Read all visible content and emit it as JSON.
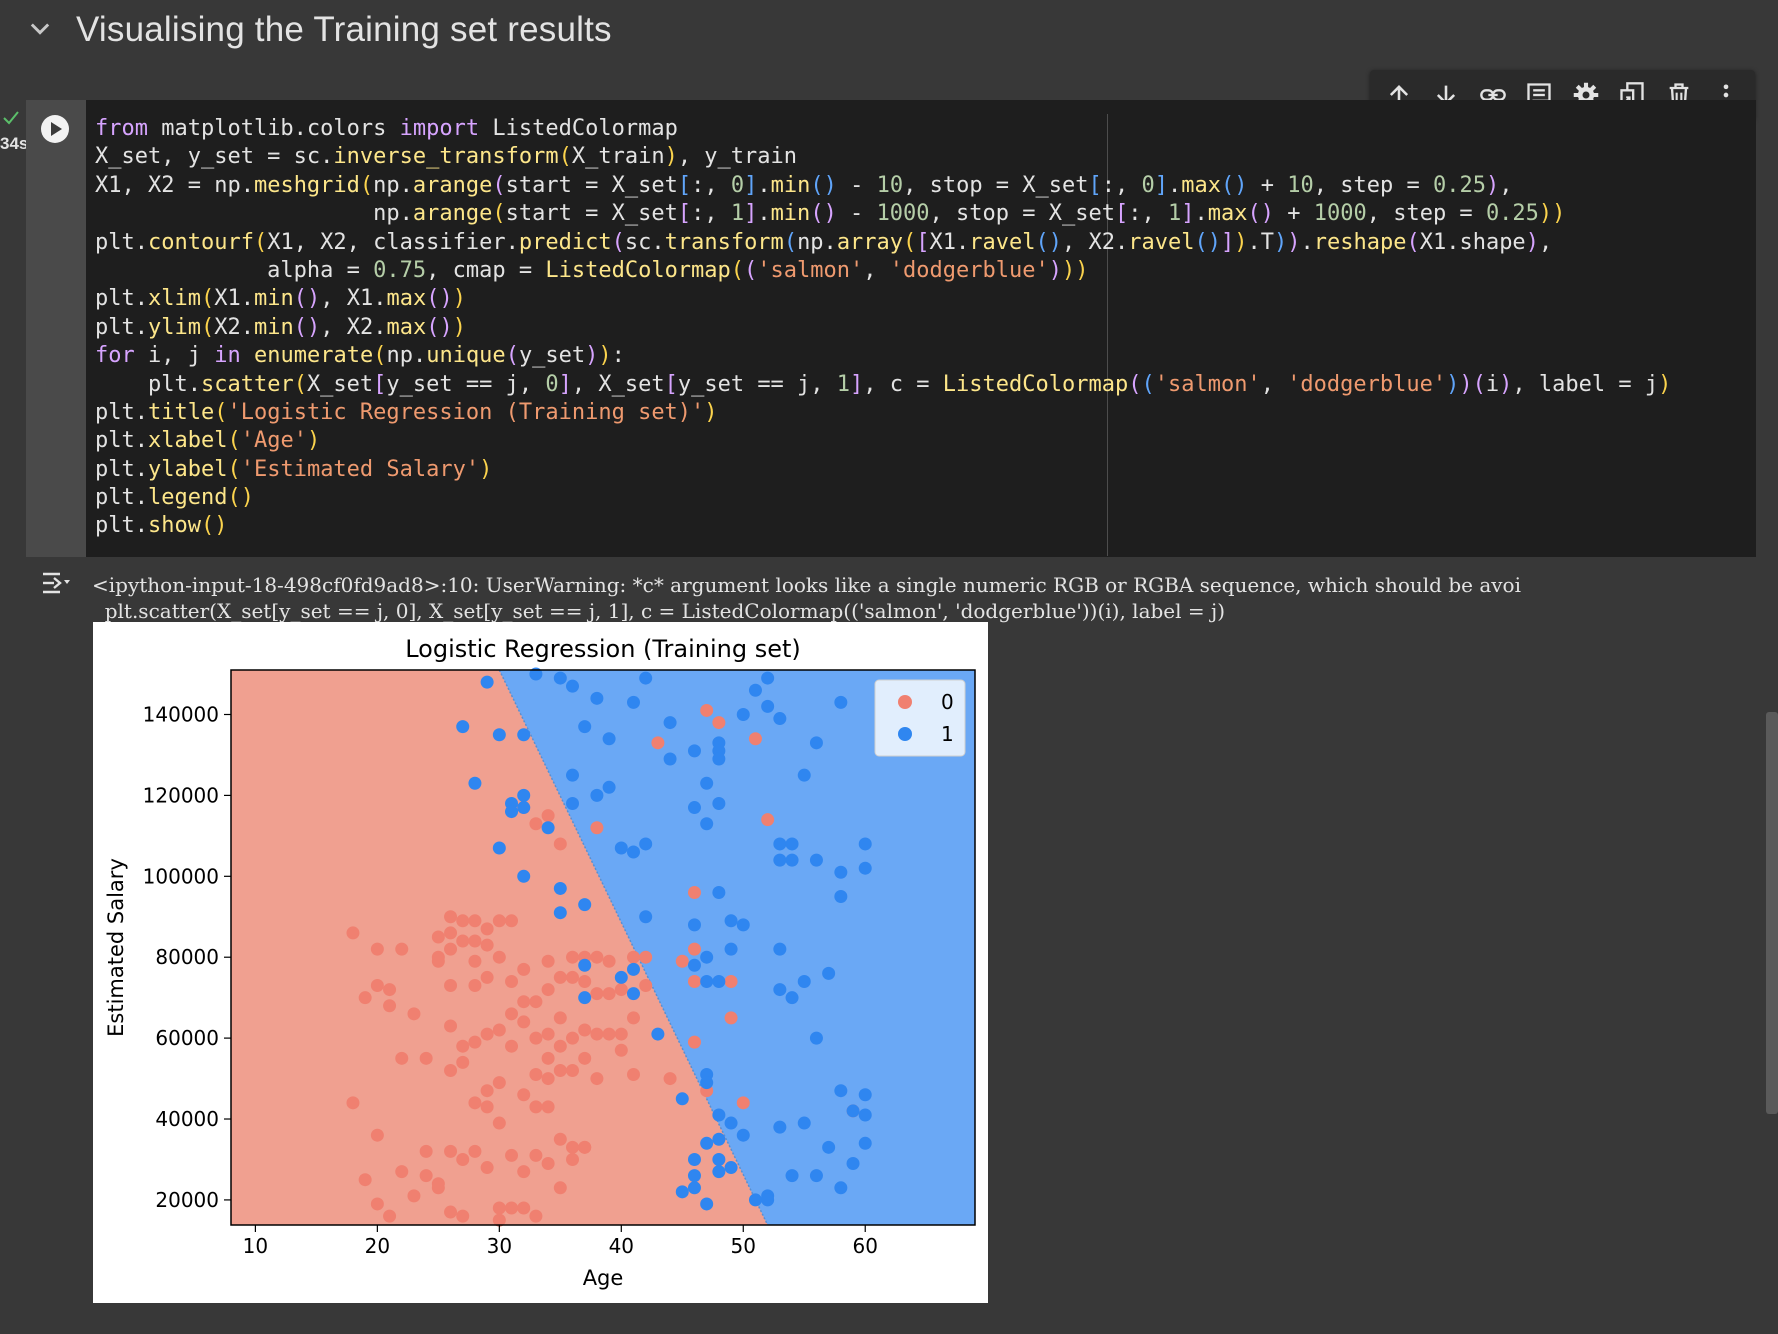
{
  "section": {
    "title": "Visualising the Training set results"
  },
  "toolbar": {
    "icons": [
      "arrow-up-icon",
      "arrow-down-icon",
      "link-icon",
      "comment-icon",
      "gear-icon",
      "mirror-cell-icon",
      "trash-icon",
      "more-vert-icon"
    ]
  },
  "cell": {
    "exec_time": "34s",
    "code_lines": [
      "from matplotlib.colors import ListedColormap",
      "X_set, y_set = sc.inverse_transform(X_train), y_train",
      "X1, X2 = np.meshgrid(np.arange(start = X_set[:, 0].min() - 10, stop = X_set[:, 0].max() + 10, step = 0.25),",
      "                     np.arange(start = X_set[:, 1].min() - 1000, stop = X_set[:, 1].max() + 1000, step = 0.25))",
      "plt.contourf(X1, X2, classifier.predict(sc.transform(np.array([X1.ravel(), X2.ravel()]).T)).reshape(X1.shape),",
      "             alpha = 0.75, cmap = ListedColormap(('salmon', 'dodgerblue')))",
      "plt.xlim(X1.min(), X1.max())",
      "plt.ylim(X2.min(), X2.max())",
      "for i, j in enumerate(np.unique(y_set)):",
      "    plt.scatter(X_set[y_set == j, 0], X_set[y_set == j, 1], c = ListedColormap(('salmon', 'dodgerblue'))(i), label = j)",
      "plt.title('Logistic Regression (Training set)')",
      "plt.xlabel('Age')",
      "plt.ylabel('Estimated Salary')",
      "plt.legend()",
      "plt.show()"
    ]
  },
  "output": {
    "warning_line1": "<ipython-input-18-498cf0fd9ad8>:10: UserWarning: *c* argument looks like a single numeric RGB or RGBA sequence, which should be avoi",
    "warning_line2": "  plt.scatter(X_set[y_set == j, 0], X_set[y_set == j, 1], c = ListedColormap(('salmon', 'dodgerblue'))(i), label = j)"
  },
  "chart_data": {
    "type": "scatter",
    "title": "Logistic Regression (Training set)",
    "xlabel": "Age",
    "ylabel": "Estimated Salary",
    "xlim": [
      8,
      69
    ],
    "ylim": [
      13800,
      151000
    ],
    "xticks": [
      10,
      20,
      30,
      40,
      50,
      60
    ],
    "yticks": [
      20000,
      40000,
      60000,
      80000,
      100000,
      120000,
      140000
    ],
    "legend": {
      "position": "top-right",
      "entries": [
        "0",
        "1"
      ]
    },
    "colors": {
      "class0_region": "#f0a090",
      "class1_region": "#6aa8f5",
      "class0_point": "#f08070",
      "class1_point": "#2f86f0"
    },
    "decision_boundary": [
      [
        30.0,
        151000
      ],
      [
        52.0,
        13800
      ]
    ],
    "series": [
      {
        "name": "0",
        "points": [
          [
            18,
            86000
          ],
          [
            19,
            70000
          ],
          [
            20,
            73000
          ],
          [
            20,
            82000
          ],
          [
            21,
            68000
          ],
          [
            21,
            72000
          ],
          [
            22,
            55000
          ],
          [
            22,
            82000
          ],
          [
            23,
            66000
          ],
          [
            24,
            55000
          ],
          [
            25,
            85000
          ],
          [
            25,
            80000
          ],
          [
            25,
            79000
          ],
          [
            26,
            90000
          ],
          [
            26,
            86000
          ],
          [
            26,
            82000
          ],
          [
            26,
            73000
          ],
          [
            26,
            63000
          ],
          [
            26,
            52000
          ],
          [
            27,
            89000
          ],
          [
            27,
            84000
          ],
          [
            27,
            58000
          ],
          [
            27,
            54000
          ],
          [
            28,
            89000
          ],
          [
            28,
            84000
          ],
          [
            28,
            79000
          ],
          [
            28,
            73000
          ],
          [
            28,
            59000
          ],
          [
            28,
            44000
          ],
          [
            29,
            87000
          ],
          [
            29,
            83000
          ],
          [
            29,
            75000
          ],
          [
            29,
            61000
          ],
          [
            29,
            47000
          ],
          [
            29,
            43000
          ],
          [
            30,
            89000
          ],
          [
            30,
            80000
          ],
          [
            30,
            62000
          ],
          [
            30,
            49000
          ],
          [
            30,
            15000
          ],
          [
            31,
            89000
          ],
          [
            31,
            74000
          ],
          [
            31,
            66000
          ],
          [
            31,
            58000
          ],
          [
            31,
            18000
          ],
          [
            32,
            117000
          ],
          [
            32,
            77000
          ],
          [
            32,
            69000
          ],
          [
            32,
            64000
          ],
          [
            32,
            18000
          ],
          [
            33,
            113000
          ],
          [
            33,
            69000
          ],
          [
            33,
            60000
          ],
          [
            33,
            51000
          ],
          [
            33,
            43000
          ],
          [
            34,
            115000
          ],
          [
            34,
            79000
          ],
          [
            34,
            72000
          ],
          [
            34,
            61000
          ],
          [
            34,
            55000
          ],
          [
            34,
            50000
          ],
          [
            34,
            43000
          ],
          [
            35,
            108000
          ],
          [
            35,
            75000
          ],
          [
            35,
            65000
          ],
          [
            35,
            58000
          ],
          [
            35,
            52000
          ],
          [
            35,
            35000
          ],
          [
            36,
            80000
          ],
          [
            36,
            75000
          ],
          [
            36,
            60000
          ],
          [
            36,
            52000
          ],
          [
            36,
            33000
          ],
          [
            37,
            80000
          ],
          [
            37,
            74000
          ],
          [
            37,
            62000
          ],
          [
            37,
            55000
          ],
          [
            37,
            33000
          ],
          [
            38,
            112000
          ],
          [
            38,
            80000
          ],
          [
            38,
            71000
          ],
          [
            38,
            61000
          ],
          [
            38,
            50000
          ],
          [
            39,
            79000
          ],
          [
            39,
            71000
          ],
          [
            39,
            61000
          ],
          [
            40,
            72000
          ],
          [
            40,
            61000
          ],
          [
            40,
            57000
          ],
          [
            41,
            80000
          ],
          [
            41,
            65000
          ],
          [
            41,
            51000
          ],
          [
            42,
            80000
          ],
          [
            42,
            73000
          ],
          [
            43,
            133000
          ],
          [
            44,
            50000
          ],
          [
            45,
            79000
          ],
          [
            46,
            96000
          ],
          [
            46,
            82000
          ],
          [
            46,
            74000
          ],
          [
            46,
            59000
          ],
          [
            47,
            141000
          ],
          [
            47,
            47000
          ],
          [
            49,
            74000
          ],
          [
            49,
            65000
          ],
          [
            50,
            44000
          ],
          [
            48,
            138000
          ],
          [
            51,
            134000
          ],
          [
            52,
            114000
          ],
          [
            59,
            42000
          ],
          [
            19,
            25000
          ],
          [
            20,
            19000
          ],
          [
            20,
            36000
          ],
          [
            18,
            44000
          ],
          [
            21,
            16000
          ],
          [
            22,
            27000
          ],
          [
            23,
            21000
          ],
          [
            24,
            26000
          ],
          [
            24,
            32000
          ],
          [
            25,
            23000
          ],
          [
            26,
            17000
          ],
          [
            26,
            32000
          ],
          [
            27,
            30000
          ],
          [
            28,
            32000
          ],
          [
            29,
            28000
          ],
          [
            30,
            39000
          ],
          [
            31,
            31000
          ],
          [
            32,
            27000
          ],
          [
            33,
            16000
          ],
          [
            34,
            29000
          ],
          [
            35,
            23000
          ],
          [
            36,
            30000
          ],
          [
            37,
            33000
          ],
          [
            25,
            24000
          ],
          [
            27,
            16000
          ],
          [
            30,
            18000
          ],
          [
            32,
            46000
          ],
          [
            33,
            31000
          ]
        ]
      },
      {
        "name": "1",
        "points": [
          [
            29,
            148000
          ],
          [
            27,
            137000
          ],
          [
            30,
            135000
          ],
          [
            32,
            135000
          ],
          [
            28,
            123000
          ],
          [
            31,
            118000
          ],
          [
            32,
            120000
          ],
          [
            31,
            116000
          ],
          [
            32,
            117000
          ],
          [
            34,
            112000
          ],
          [
            30,
            107000
          ],
          [
            32,
            100000
          ],
          [
            35,
            97000
          ],
          [
            35,
            91000
          ],
          [
            37,
            93000
          ],
          [
            33,
            150000
          ],
          [
            35,
            149000
          ],
          [
            36,
            147000
          ],
          [
            38,
            144000
          ],
          [
            37,
            137000
          ],
          [
            39,
            134000
          ],
          [
            41,
            143000
          ],
          [
            36,
            125000
          ],
          [
            38,
            120000
          ],
          [
            36,
            118000
          ],
          [
            39,
            122000
          ],
          [
            42,
            149000
          ],
          [
            40,
            107000
          ],
          [
            41,
            106000
          ],
          [
            42,
            108000
          ],
          [
            42,
            90000
          ],
          [
            41,
            77000
          ],
          [
            40,
            75000
          ],
          [
            37,
            78000
          ],
          [
            37,
            70000
          ],
          [
            41,
            71000
          ],
          [
            43,
            61000
          ],
          [
            44,
            138000
          ],
          [
            44,
            129000
          ],
          [
            46,
            131000
          ],
          [
            48,
            133000
          ],
          [
            48,
            131000
          ],
          [
            48,
            129000
          ],
          [
            47,
            123000
          ],
          [
            46,
            117000
          ],
          [
            47,
            113000
          ],
          [
            48,
            118000
          ],
          [
            50,
            140000
          ],
          [
            51,
            146000
          ],
          [
            52,
            142000
          ],
          [
            53,
            139000
          ],
          [
            52,
            149000
          ],
          [
            55,
            125000
          ],
          [
            56,
            133000
          ],
          [
            58,
            143000
          ],
          [
            53,
            108000
          ],
          [
            54,
            104000
          ],
          [
            54,
            108000
          ],
          [
            53,
            104000
          ],
          [
            56,
            104000
          ],
          [
            58,
            101000
          ],
          [
            60,
            108000
          ],
          [
            60,
            102000
          ],
          [
            58,
            95000
          ],
          [
            46,
            88000
          ],
          [
            48,
            96000
          ],
          [
            47,
            80000
          ],
          [
            49,
            89000
          ],
          [
            50,
            88000
          ],
          [
            49,
            82000
          ],
          [
            46,
            78000
          ],
          [
            47,
            74000
          ],
          [
            48,
            74000
          ],
          [
            53,
            82000
          ],
          [
            54,
            70000
          ],
          [
            53,
            72000
          ],
          [
            55,
            74000
          ],
          [
            57,
            76000
          ],
          [
            56,
            60000
          ],
          [
            47,
            51000
          ],
          [
            47,
            49000
          ],
          [
            48,
            41000
          ],
          [
            48,
            35000
          ],
          [
            47,
            34000
          ],
          [
            46,
            30000
          ],
          [
            46,
            26000
          ],
          [
            45,
            22000
          ],
          [
            46,
            23000
          ],
          [
            47,
            19000
          ],
          [
            48,
            30000
          ],
          [
            48,
            27000
          ],
          [
            49,
            28000
          ],
          [
            50,
            36000
          ],
          [
            51,
            20000
          ],
          [
            52,
            21000
          ],
          [
            53,
            38000
          ],
          [
            55,
            39000
          ],
          [
            57,
            33000
          ],
          [
            58,
            47000
          ],
          [
            59,
            42000
          ],
          [
            60,
            46000
          ],
          [
            60,
            41000
          ],
          [
            60,
            34000
          ],
          [
            58,
            23000
          ],
          [
            59,
            29000
          ],
          [
            56,
            26000
          ],
          [
            52,
            20000
          ],
          [
            54,
            26000
          ],
          [
            49,
            39000
          ],
          [
            45,
            45000
          ]
        ]
      }
    ]
  }
}
